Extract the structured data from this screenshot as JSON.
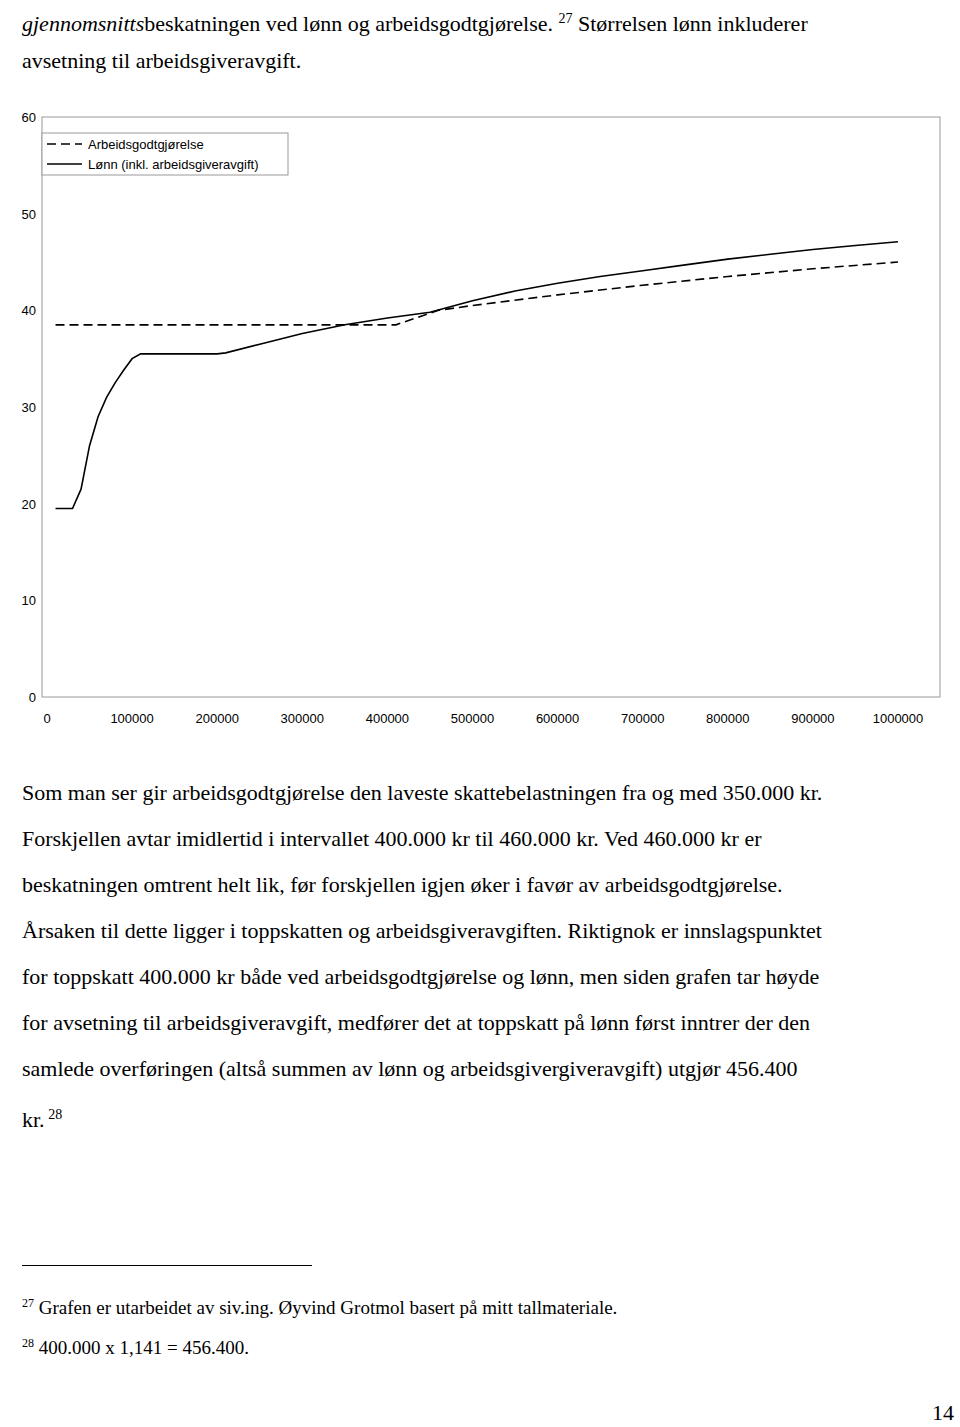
{
  "chart_data": {
    "type": "line",
    "legend": "top-left",
    "grid": false,
    "xlim": [
      0,
      1000000
    ],
    "xticks": [
      0,
      100000,
      200000,
      300000,
      400000,
      500000,
      600000,
      700000,
      800000,
      900000,
      1000000
    ],
    "ylim": [
      0,
      60
    ],
    "yticks": [
      0,
      10,
      20,
      30,
      40,
      50,
      60
    ],
    "series": [
      {
        "name": "Arbeidsgodtgjørelse",
        "color": "#000000",
        "line_style": "dashed",
        "x": [
          10000,
          410000,
          460000,
          500000,
          600000,
          700000,
          800000,
          900000,
          1000000
        ],
        "values": [
          38.5,
          38.5,
          40,
          40.5,
          41.6,
          42.6,
          43.5,
          44.3,
          45
        ]
      },
      {
        "name": "Lønn (inkl. arbeidsgiveravgift)",
        "color": "#000000",
        "line_style": "solid",
        "x": [
          10000,
          30000,
          40000,
          50000,
          60000,
          70000,
          80000,
          90000,
          100000,
          110000,
          150000,
          200000,
          210000,
          250000,
          300000,
          350000,
          400000,
          450000,
          500000,
          550000,
          600000,
          650000,
          700000,
          750000,
          800000,
          850000,
          900000,
          950000,
          1000000
        ],
        "values": [
          19.5,
          19.5,
          21.5,
          26,
          29,
          31,
          32.5,
          33.8,
          35,
          35.5,
          35.5,
          35.5,
          35.6,
          36.5,
          37.6,
          38.5,
          39.2,
          39.8,
          41,
          42,
          42.8,
          43.5,
          44.1,
          44.7,
          45.3,
          45.8,
          46.3,
          46.7,
          47.1
        ]
      }
    ]
  },
  "page": {
    "intro_lines": [
      [
        {
          "text": "gjennomsnitts",
          "style": "italic"
        },
        {
          "text": "beskatningen ved lønn og arbeidsgodtgjørelse. "
        },
        {
          "text": "27",
          "style": "sup"
        },
        {
          "text": " Størrelsen lønn inkluderer"
        }
      ],
      [
        {
          "text": "avsetning til arbeidsgiveravgift."
        }
      ]
    ],
    "body_lines": [
      [
        {
          "text": "Som man ser gir arbeidsgodtgjørelse den laveste skattebelastningen fra og med 350.000 kr."
        }
      ],
      [
        {
          "text": "Forskjellen avtar imidlertid i intervallet 400.000 kr til 460.000 kr. Ved 460.000 kr er"
        }
      ],
      [
        {
          "text": "beskatningen omtrent helt lik, før forskjellen igjen øker i favør av arbeidsgodtgjørelse."
        }
      ],
      [
        {
          "text": "Årsaken til dette ligger i toppskatten og arbeidsgiveravgiften. Riktignok er innslagspunktet"
        }
      ],
      [
        {
          "text": "for toppskatt 400.000 kr både ved arbeidsgodtgjørelse og lønn, men siden grafen tar høyde"
        }
      ],
      [
        {
          "text": "for avsetning til arbeidsgiveravgift, medfører det at toppskatt på lønn først inntrer der den"
        }
      ],
      [
        {
          "text": "samlede overføringen (altså summen av lønn og arbeidsgivergiveravgift) utgjør 456.400"
        }
      ],
      [
        {
          "text": "kr."
        },
        {
          "text": " 28",
          "style": "sup"
        }
      ]
    ],
    "footnotes": [
      {
        "ref": "27",
        "text": " Grafen er utarbeidet av siv.ing. Øyvind Grotmol basert på mitt tallmateriale."
      },
      {
        "ref": "28",
        "text": " 400.000 x 1,141 = 456.400."
      }
    ],
    "page_number": "14"
  }
}
